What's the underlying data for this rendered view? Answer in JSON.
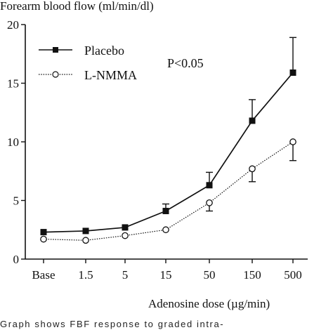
{
  "chart_data": {
    "type": "line",
    "title": "",
    "ylabel": "Forearm blood flow (ml/min/dl)",
    "xlabel": "Adenosine dose (µg/min)",
    "categories": [
      "Base",
      "1.5",
      "5",
      "15",
      "50",
      "150",
      "500"
    ],
    "ylim": [
      0,
      20
    ],
    "yticks": [
      0,
      5,
      10,
      15,
      20
    ],
    "grid": false,
    "legend_position": "top-left",
    "annotation": "P<0.05",
    "series": [
      {
        "name": "Placebo",
        "marker": "filled-square",
        "line": "solid",
        "values": [
          2.3,
          2.4,
          2.7,
          4.1,
          6.3,
          11.8,
          15.9
        ],
        "error_upper": [
          null,
          null,
          null,
          4.7,
          7.4,
          13.6,
          18.9
        ]
      },
      {
        "name": "L-NMMA",
        "marker": "open-circle",
        "line": "dotted",
        "values": [
          1.7,
          1.6,
          2.0,
          2.5,
          4.8,
          7.7,
          10.0
        ],
        "error_lower": [
          null,
          null,
          null,
          null,
          4.1,
          6.6,
          8.4
        ]
      }
    ]
  },
  "caption": "Graph shows FBF response to graded intra-"
}
